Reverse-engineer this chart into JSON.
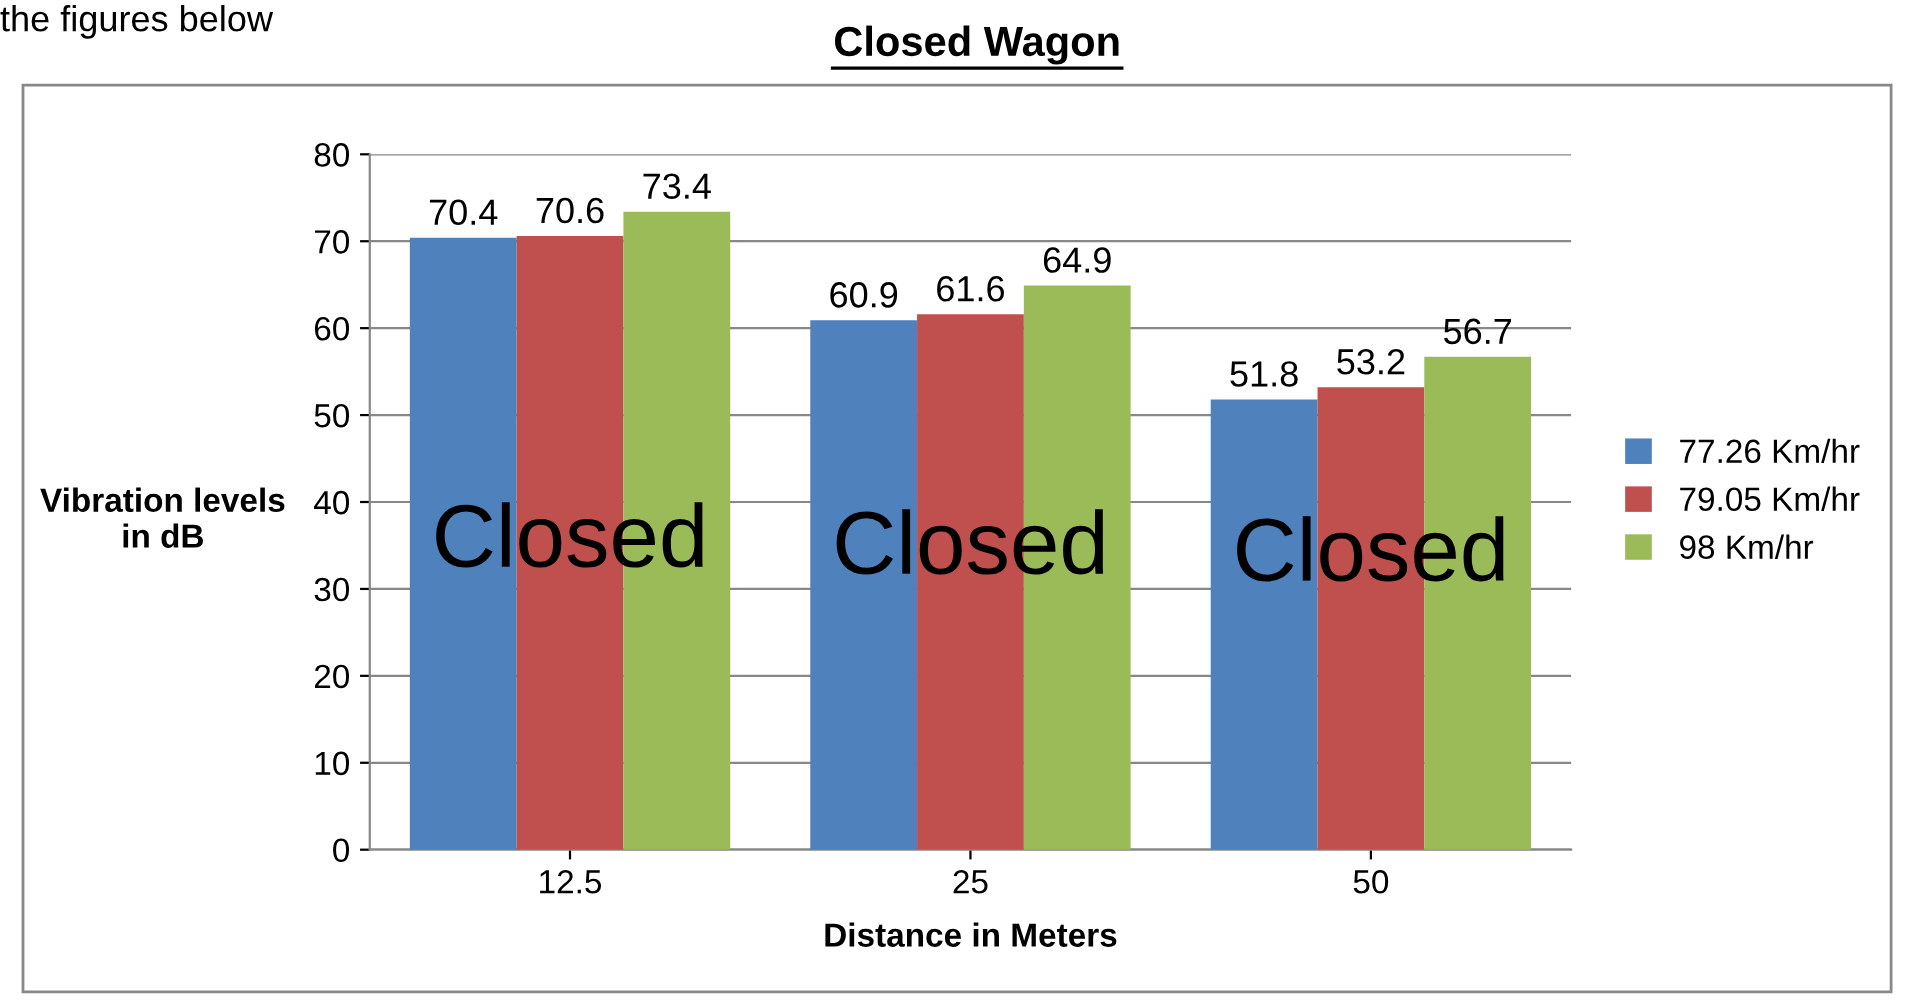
{
  "chart_data": {
    "type": "bar",
    "title": "Closed Wagon",
    "xlabel": "Distance in Meters",
    "ylabel": "Vibration levels\nin dB",
    "categories": [
      "12.5",
      "25",
      "50"
    ],
    "series": [
      {
        "name": "77.26 Km/hr",
        "color": "#4f81bd",
        "values": [
          70.4,
          60.9,
          51.8
        ]
      },
      {
        "name": "79.05 Km/hr",
        "color": "#c0504d",
        "values": [
          70.6,
          61.6,
          53.2
        ]
      },
      {
        "name": "98 Km/hr",
        "color": "#9bbb59",
        "values": [
          73.4,
          64.9,
          56.7
        ]
      }
    ],
    "ylim": [
      0,
      80
    ],
    "yticks": [
      0,
      10,
      20,
      30,
      40,
      50,
      60,
      70,
      80
    ],
    "grid": "y",
    "legend": "right",
    "data_labels": true,
    "annotations": [
      "the figures below",
      "Closed",
      "Closed",
      "Closed"
    ]
  }
}
